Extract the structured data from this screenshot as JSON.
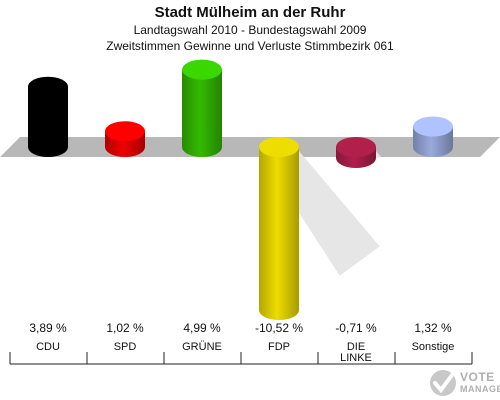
{
  "header": {
    "title": "Stadt Mülheim an der Ruhr",
    "subtitle1": "Landtagswahl 2010 - Bundestagswahl 2009",
    "subtitle2": "Zweitstimmen Gewinne und Verluste Stimmbezirk 061"
  },
  "logo": {
    "line1": "VOTE",
    "line2": "MANAGER"
  },
  "chart_data": {
    "type": "bar",
    "categories": [
      "CDU",
      "SPD",
      "GRÜNE",
      "FDP",
      "DIE LINKE",
      "Sonstige"
    ],
    "values": [
      3.89,
      1.02,
      4.99,
      -10.52,
      -0.71,
      1.32
    ],
    "value_labels": [
      "3,89 %",
      "1,02 %",
      "4,99 %",
      "-10,52 %",
      "-0,71 %",
      "1,32 %"
    ],
    "colors": [
      "#000000",
      "#ee0000",
      "#33bb00",
      "#eedd00",
      "#b0204a",
      "#99aadd"
    ],
    "grid": false
  }
}
